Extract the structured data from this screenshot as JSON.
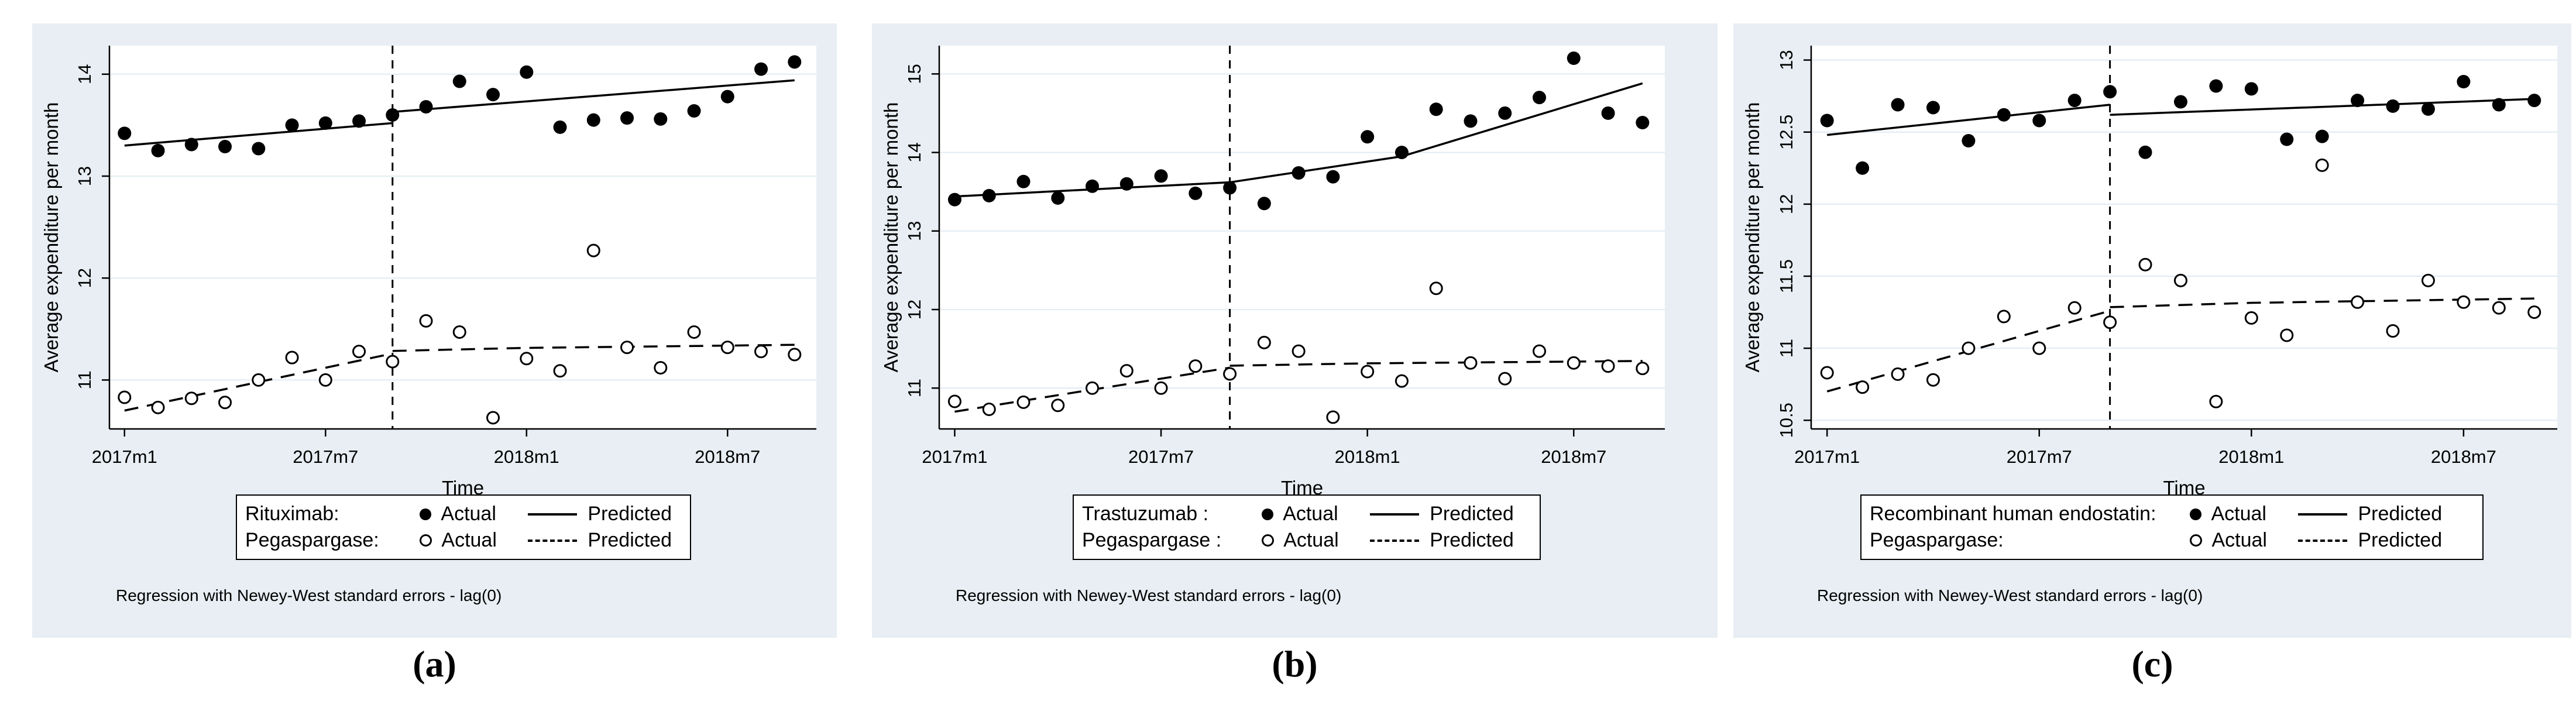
{
  "figure": {
    "ylabel": "Average expenditure per month",
    "xlabel": "Time",
    "note": "Regression with Newey-West standard errors - lag(0)",
    "actual_label": "Actual",
    "predicted_label": "Predicted",
    "xtick_labels": [
      "2017m1",
      "2017m7",
      "2018m1",
      "2018m7"
    ]
  },
  "colors": {
    "panel_bg": "#e8eef3",
    "plot_bg": "#ffffff",
    "grid": "#e1ebf1",
    "ink": "#000000"
  },
  "months": [
    "2017m1",
    "2017m2",
    "2017m3",
    "2017m4",
    "2017m5",
    "2017m6",
    "2017m7",
    "2017m8",
    "2017m9",
    "2017m10",
    "2017m11",
    "2017m12",
    "2018m1",
    "2018m2",
    "2018m3",
    "2018m4",
    "2018m5",
    "2018m6",
    "2018m7",
    "2018m8",
    "2018m9"
  ],
  "chart_data": [
    {
      "panel": "a",
      "caption": "(a)",
      "type": "scatter",
      "xlabel": "Time",
      "ylabel": "Average expenditure per month",
      "treated_label": "Rituximab:",
      "control_label": "Pegaspargase:",
      "legend_cols": [
        "Actual",
        "Predicted"
      ],
      "ylim": [
        10.52,
        14.28
      ],
      "yticks": [
        11,
        12,
        13,
        14
      ],
      "ytick_labels": [
        "11",
        "12",
        "13",
        "14"
      ],
      "xtick_months": [
        1,
        7,
        13,
        19
      ],
      "xtick_labels": [
        "2017m1",
        "2017m7",
        "2018m1",
        "2018m7"
      ],
      "break_month": 9,
      "grid": true,
      "legend_position": "below",
      "series": {
        "treated_actual": [
          13.42,
          13.25,
          13.31,
          13.29,
          13.27,
          13.5,
          13.52,
          13.54,
          13.6,
          13.68,
          13.93,
          13.8,
          14.02,
          13.48,
          13.55,
          13.57,
          13.56,
          13.64,
          13.78,
          14.05,
          14.12
        ],
        "treated_predicted": [
          [
            [
              1,
              13.3
            ],
            [
              9,
              13.52
            ]
          ],
          [
            [
              9,
              13.63
            ],
            [
              21,
              13.94
            ]
          ]
        ],
        "control_actual": [
          10.83,
          10.73,
          10.82,
          10.78,
          11.0,
          11.22,
          11.0,
          11.28,
          11.18,
          11.58,
          11.47,
          10.63,
          11.21,
          11.09,
          12.27,
          11.32,
          11.12,
          11.47,
          11.32,
          11.28,
          11.25
        ],
        "control_predicted": [
          [
            [
              1,
              10.7
            ],
            [
              9,
              11.26
            ]
          ],
          [
            [
              9,
              11.285
            ],
            [
              13,
              11.315
            ],
            [
              21,
              11.345
            ]
          ]
        ]
      },
      "note": "Regression with Newey-West standard errors - lag(0)"
    },
    {
      "panel": "b",
      "caption": "(b)",
      "type": "scatter",
      "xlabel": "Time",
      "ylabel": "Average expenditure per month",
      "treated_label": "Trastuzumab :",
      "control_label": "Pegaspargase :",
      "legend_cols": [
        "Actual",
        "Predicted"
      ],
      "ylim": [
        10.48,
        15.36
      ],
      "yticks": [
        11,
        12,
        13,
        14,
        15
      ],
      "ytick_labels": [
        "11",
        "12",
        "13",
        "14",
        "15"
      ],
      "xtick_months": [
        1,
        7,
        13,
        19
      ],
      "xtick_labels": [
        "2017m1",
        "2017m7",
        "2018m1",
        "2018m7"
      ],
      "break_month": 9,
      "grid": true,
      "legend_position": "below",
      "series": {
        "treated_actual": [
          13.4,
          13.45,
          13.63,
          13.42,
          13.57,
          13.6,
          13.7,
          13.48,
          13.55,
          13.35,
          13.74,
          13.69,
          14.2,
          14.0,
          14.55,
          14.4,
          14.5,
          14.7,
          15.2,
          14.5,
          14.38
        ],
        "treated_predicted": [
          [
            [
              1,
              13.44
            ],
            [
              9,
              13.62
            ]
          ],
          [
            [
              9,
              13.62
            ],
            [
              14,
              13.95
            ],
            [
              21,
              14.88
            ]
          ]
        ],
        "control_actual": [
          10.83,
          10.73,
          10.82,
          10.78,
          11.0,
          11.22,
          11.0,
          11.28,
          11.18,
          11.58,
          11.47,
          10.63,
          11.21,
          11.09,
          12.27,
          11.32,
          11.12,
          11.47,
          11.32,
          11.28,
          11.25
        ],
        "control_predicted": [
          [
            [
              1,
              10.7
            ],
            [
              9,
              11.26
            ]
          ],
          [
            [
              9,
              11.285
            ],
            [
              13,
              11.315
            ],
            [
              21,
              11.345
            ]
          ]
        ]
      },
      "note": "Regression with Newey-West standard errors - lag(0)"
    },
    {
      "panel": "c",
      "caption": "(c)",
      "type": "scatter",
      "xlabel": "Time",
      "ylabel": "Average expenditure per month",
      "treated_label": "Recombinant human endostatin:",
      "control_label": "Pegaspargase:",
      "legend_cols": [
        "Actual",
        "Predicted"
      ],
      "ylim": [
        10.44,
        13.1
      ],
      "yticks": [
        10.5,
        11,
        11.5,
        12,
        12.5,
        13
      ],
      "ytick_labels": [
        "10.5",
        "11",
        "11.5",
        "12",
        "12.5",
        "13"
      ],
      "xtick_months": [
        1,
        7,
        13,
        19
      ],
      "xtick_labels": [
        "2017m1",
        "2017m7",
        "2018m1",
        "2018m7"
      ],
      "break_month": 9,
      "grid": true,
      "legend_position": "below",
      "series": {
        "treated_actual": [
          12.58,
          12.25,
          12.69,
          12.67,
          12.44,
          12.62,
          12.58,
          12.72,
          12.78,
          12.36,
          12.71,
          12.82,
          12.8,
          12.45,
          12.47,
          12.72,
          12.68,
          12.66,
          12.85,
          12.69,
          12.72
        ],
        "treated_predicted": [
          [
            [
              1,
              12.48
            ],
            [
              9,
              12.69
            ]
          ],
          [
            [
              9,
              12.62
            ],
            [
              21,
              12.73
            ]
          ]
        ],
        "control_actual": [
          10.83,
          10.73,
          10.82,
          10.78,
          11.0,
          11.22,
          11.0,
          11.28,
          11.18,
          11.58,
          11.47,
          10.63,
          11.21,
          11.09,
          12.27,
          11.32,
          11.12,
          11.47,
          11.32,
          11.28,
          11.25
        ],
        "control_predicted": [
          [
            [
              1,
              10.7
            ],
            [
              9,
              11.26
            ]
          ],
          [
            [
              9,
              11.285
            ],
            [
              13,
              11.315
            ],
            [
              21,
              11.345
            ]
          ]
        ]
      },
      "note": "Regression with Newey-West standard errors - lag(0)"
    }
  ]
}
